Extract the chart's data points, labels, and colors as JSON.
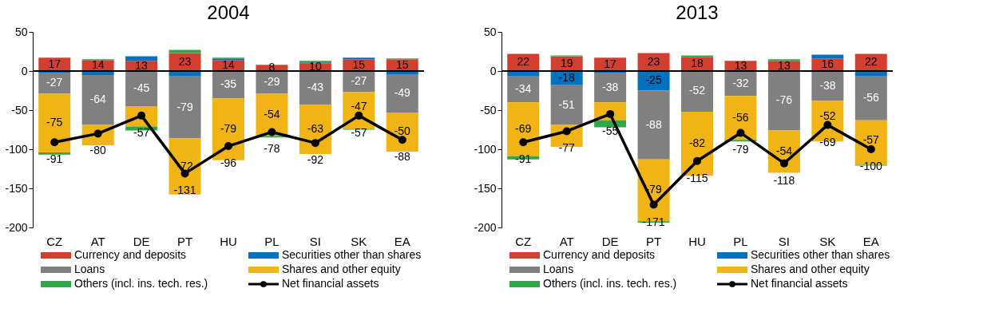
{
  "chart_data": [
    {
      "type": "bar",
      "title": "2004",
      "stacked": true,
      "ref_lines": [
        {
          "axis": "y",
          "value": 0,
          "color": "#000000"
        }
      ],
      "legend": "bottom",
      "grid": false,
      "ylim": [
        -200,
        50
      ],
      "yticks": [
        -200,
        -150,
        -100,
        -50,
        0,
        50
      ],
      "categories": [
        "CZ",
        "AT",
        "DE",
        "PT",
        "HU",
        "PL",
        "SI",
        "SK",
        "EA"
      ],
      "series": [
        {
          "name": "Currency and deposits",
          "color": "#d23f2f",
          "values": [
            17,
            14,
            13,
            23,
            14,
            8,
            10,
            15,
            15
          ],
          "value_labels": [
            "17",
            "14",
            "13",
            "23",
            "14",
            "8",
            "10",
            "15",
            "15"
          ]
        },
        {
          "name": "Securities other than shares",
          "color": "#0070c0",
          "values": [
            -2,
            -5,
            6,
            -7,
            2,
            null,
            1,
            2,
            -4
          ],
          "value_labels": [
            null,
            null,
            null,
            null,
            null,
            null,
            null,
            null,
            null
          ]
        },
        {
          "name": "Loans",
          "color": "#808080",
          "values": [
            -27,
            -64,
            -45,
            -79,
            -35,
            -29,
            -43,
            -27,
            -49
          ],
          "value_labels": [
            "-27",
            "-64",
            "-45",
            "-79",
            "-35",
            "-29",
            "-43",
            "-27",
            "-49"
          ]
        },
        {
          "name": "Shares and other equity",
          "color": "#f0b414",
          "values": [
            -75,
            -26,
            -26,
            -72,
            -79,
            -54,
            -63,
            -47,
            -50
          ],
          "value_labels": [
            "-75",
            null,
            null,
            "-72",
            "-79",
            "-54",
            "-63",
            "-47",
            "-50"
          ]
        },
        {
          "name": "Others (incl. ins. tech. res.)",
          "color": "#2ea84a",
          "values": [
            -3,
            1,
            -5,
            4,
            1,
            -2,
            2,
            -1,
            1
          ],
          "value_labels": [
            null,
            null,
            null,
            null,
            null,
            null,
            null,
            null,
            null
          ]
        },
        {
          "name": "Net financial assets",
          "type": "line",
          "marker": "circle",
          "color": "#000000",
          "values": [
            -91,
            -80,
            -57,
            -131,
            -96,
            -78,
            -92,
            -57,
            -88
          ],
          "value_labels": [
            "-91",
            "-80",
            "-57",
            "-131",
            "-96",
            "-78",
            "-92",
            "-57",
            "-88"
          ]
        }
      ]
    },
    {
      "type": "bar",
      "title": "2013",
      "stacked": true,
      "ref_lines": [
        {
          "axis": "y",
          "value": 0,
          "color": "#000000"
        }
      ],
      "legend": "bottom",
      "grid": false,
      "ylim": [
        -200,
        50
      ],
      "yticks": [
        -200,
        -150,
        -100,
        -50,
        0,
        50
      ],
      "categories": [
        "CZ",
        "AT",
        "DE",
        "PT",
        "HU",
        "PL",
        "SI",
        "SK",
        "EA"
      ],
      "series": [
        {
          "name": "Currency and deposits",
          "color": "#d23f2f",
          "values": [
            22,
            19,
            17,
            23,
            18,
            13,
            13,
            16,
            22
          ],
          "value_labels": [
            "22",
            "19",
            "17",
            "23",
            "18",
            "13",
            "13",
            "16",
            "22"
          ]
        },
        {
          "name": "Securities other than shares",
          "color": "#0070c0",
          "values": [
            -6,
            -18,
            -2,
            -25,
            null,
            null,
            null,
            5,
            -7
          ],
          "value_labels": [
            null,
            "-18",
            null,
            "-25",
            null,
            null,
            null,
            null,
            null
          ]
        },
        {
          "name": "Loans",
          "color": "#808080",
          "values": [
            -34,
            -51,
            -38,
            -88,
            -52,
            -32,
            -76,
            -38,
            -56
          ],
          "value_labels": [
            "-34",
            "-51",
            "-38",
            "-88",
            "-52",
            "-32",
            "-76",
            "-38",
            "-56"
          ]
        },
        {
          "name": "Shares and other equity",
          "color": "#f0b414",
          "values": [
            -69,
            -28,
            -23,
            -79,
            -82,
            -56,
            -54,
            -52,
            -57
          ],
          "value_labels": [
            "-69",
            null,
            null,
            "-79",
            "-82",
            "-56",
            "-54",
            "-52",
            "-57"
          ]
        },
        {
          "name": "Others (incl. ins. tech. res.)",
          "color": "#2ea84a",
          "values": [
            -4,
            1,
            -9,
            -2,
            2,
            -2,
            2,
            null,
            -1
          ],
          "value_labels": [
            null,
            null,
            null,
            null,
            null,
            null,
            null,
            null,
            null
          ]
        },
        {
          "name": "Net financial assets",
          "type": "line",
          "marker": "circle",
          "color": "#000000",
          "values": [
            -91,
            -77,
            -55,
            -171,
            -115,
            -79,
            -118,
            -69,
            -100
          ],
          "value_labels": [
            "-91",
            "-77",
            "-55",
            "-171",
            "-115",
            "-79",
            "-118",
            "-69",
            "-100"
          ]
        }
      ]
    }
  ]
}
